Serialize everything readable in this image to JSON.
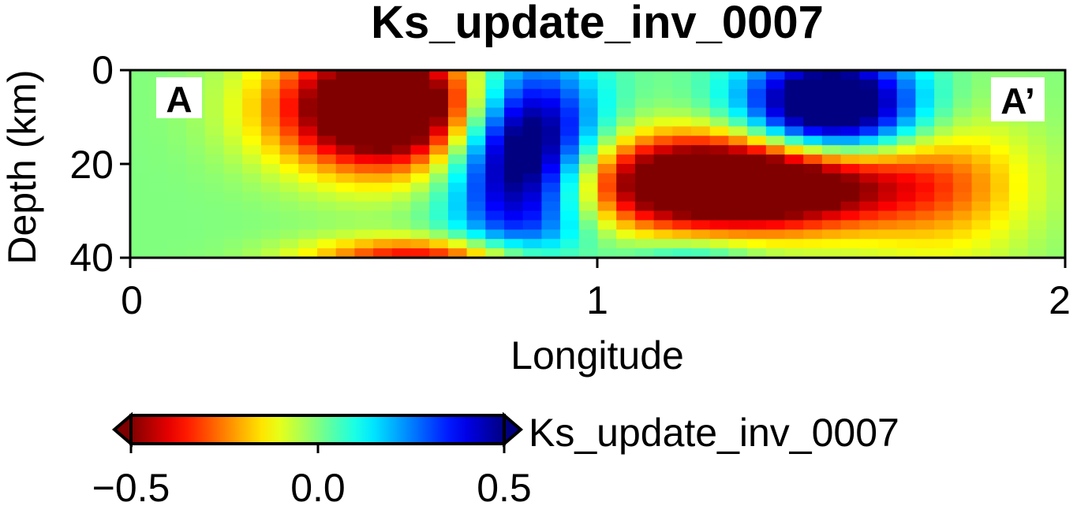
{
  "chart_data": {
    "type": "heatmap",
    "title": "Ks_update_inv_0007",
    "xlabel": "Longitude",
    "ylabel": "Depth (km)",
    "xlim": [
      0,
      2
    ],
    "ylim": [
      0,
      40
    ],
    "y_inverted": true,
    "x_ticks": [
      "0",
      "1",
      "2"
    ],
    "y_ticks": [
      "0",
      "20",
      "40"
    ],
    "section_labels": {
      "start": "A",
      "end": "A’"
    },
    "colorbar": {
      "label": "Ks_update_inv_0007",
      "range": [
        -0.5,
        0.5
      ],
      "ticks": [
        "−0.5",
        "0.0",
        "0.5"
      ],
      "extend": "both",
      "colormap": "jet_reversed",
      "low_color": "#7f0000",
      "high_color": "#00007f"
    },
    "anomalies": [
      {
        "type": "negative",
        "center_lon": 0.55,
        "center_depth_km": 8,
        "sigma_lon": 0.16,
        "sigma_depth_km": 9,
        "amplitude": -0.85
      },
      {
        "type": "positive",
        "center_lon": 0.84,
        "center_depth_km": 18,
        "sigma_lon": 0.11,
        "sigma_depth_km": 14,
        "amplitude": 0.75
      },
      {
        "type": "negative",
        "center_lon": 1.3,
        "center_depth_km": 24,
        "sigma_lon": 0.25,
        "sigma_depth_km": 7,
        "amplitude": -0.9
      },
      {
        "type": "positive",
        "center_lon": 1.5,
        "center_depth_km": 8,
        "sigma_lon": 0.13,
        "sigma_depth_km": 8,
        "amplitude": 0.75
      },
      {
        "type": "negative",
        "center_lon": 0.63,
        "center_depth_km": 40,
        "sigma_lon": 0.17,
        "sigma_depth_km": 3,
        "amplitude": -0.4
      },
      {
        "type": "positive",
        "center_lon": 1.2,
        "center_depth_km": 40,
        "sigma_lon": 0.1,
        "sigma_depth_km": 3,
        "amplitude": 0.15
      },
      {
        "type": "negative",
        "center_lon": 1.75,
        "center_depth_km": 25,
        "sigma_lon": 0.13,
        "sigma_depth_km": 14,
        "amplitude": -0.15
      }
    ],
    "background_value": 0.0
  }
}
